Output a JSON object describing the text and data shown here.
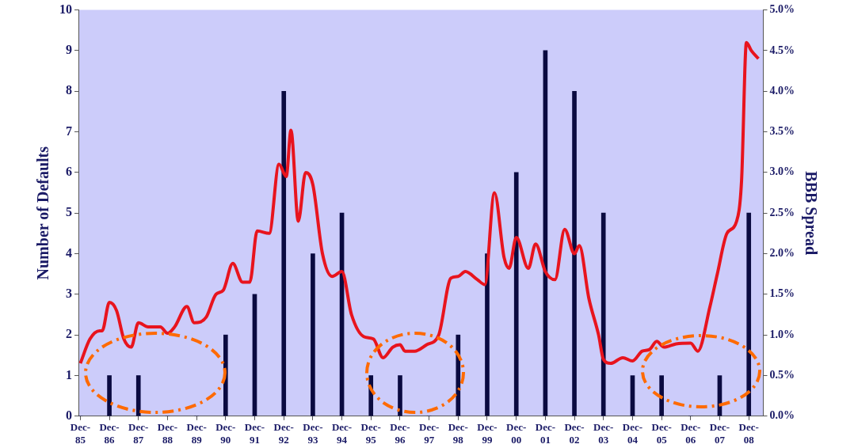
{
  "chart_data": {
    "type": "bar",
    "ylabel": "Number of Defaults",
    "y2label": "BBB Spread",
    "grid": false,
    "marker": "none",
    "xlim": [
      "1985-11-07",
      "2009-06-01"
    ],
    "xticks": [
      {
        "value": "1985-12",
        "label": "Dec-85"
      },
      {
        "value": "1986-12",
        "label": "Dec-86"
      },
      {
        "value": "1987-12",
        "label": "Dec-87"
      },
      {
        "value": "1988-12",
        "label": "Dec-88"
      },
      {
        "value": "1989-12",
        "label": "Dec-89"
      },
      {
        "value": "1990-12",
        "label": "Dec-90"
      },
      {
        "value": "1991-12",
        "label": "Dec-91"
      },
      {
        "value": "1992-12",
        "label": "Dec-92"
      },
      {
        "value": "1993-12",
        "label": "Dec-93"
      },
      {
        "value": "1994-12",
        "label": "Dec-94"
      },
      {
        "value": "1995-12",
        "label": "Dec-95"
      },
      {
        "value": "1996-12",
        "label": "Dec-96"
      },
      {
        "value": "1997-12",
        "label": "Dec-97"
      },
      {
        "value": "1998-12",
        "label": "Dec-98"
      },
      {
        "value": "1999-12",
        "label": "Dec-99"
      },
      {
        "value": "2000-12",
        "label": "Dec-00"
      },
      {
        "value": "2001-12",
        "label": "Dec-01"
      },
      {
        "value": "2002-12",
        "label": "Dec-02"
      },
      {
        "value": "2003-12",
        "label": "Dec-03"
      },
      {
        "value": "2004-12",
        "label": "Dec-04"
      },
      {
        "value": "2005-12",
        "label": "Dec-05"
      },
      {
        "value": "2006-12",
        "label": "Dec-06"
      },
      {
        "value": "2007-12",
        "label": "Dec-07"
      },
      {
        "value": "2008-12",
        "label": "Dec-08"
      }
    ],
    "ylim": [
      0,
      10
    ],
    "yticks": [
      0,
      1,
      2,
      3,
      4,
      5,
      6,
      7,
      8,
      9,
      10
    ],
    "y2lim": [
      0,
      5
    ],
    "y2ticks": [
      {
        "value": 0,
        "label": "0.0%"
      },
      {
        "value": 0.5,
        "label": "0.5%"
      },
      {
        "value": 1,
        "label": "1.0%"
      },
      {
        "value": 1.5,
        "label": "1.5%"
      },
      {
        "value": 2,
        "label": "2.0%"
      },
      {
        "value": 2.5,
        "label": "2.5%"
      },
      {
        "value": 3,
        "label": "3.0%"
      },
      {
        "value": 3.5,
        "label": "3.5%"
      },
      {
        "value": 4,
        "label": "4.0%"
      },
      {
        "value": 4.5,
        "label": "4.5%"
      },
      {
        "value": 5,
        "label": "5.0%"
      }
    ],
    "series": [
      {
        "color": "#0a0a40",
        "x": [
          "1985-12",
          "1986-12",
          "1987-12",
          "1988-12",
          "1989-12",
          "1990-12",
          "1991-12",
          "1992-12",
          "1993-12",
          "1994-12",
          "1995-12",
          "1996-12",
          "1997-12",
          "1998-12",
          "1999-12",
          "2000-12",
          "2001-12",
          "2002-12",
          "2003-12",
          "2004-12",
          "2005-12",
          "2006-12",
          "2007-12",
          "2008-12"
        ],
        "values": [
          0,
          1,
          1,
          0,
          0,
          2,
          3,
          8,
          4,
          5,
          1,
          1,
          0,
          2,
          4,
          6,
          9,
          8,
          5,
          1,
          1,
          0,
          1,
          5
        ]
      },
      {
        "type": "line",
        "axis": "y2",
        "color": "#e8141e",
        "x": [
          "1985-12",
          "1986-04",
          "1986-08",
          "1986-09",
          "1986-12",
          "1987-03",
          "1987-06",
          "1987-09",
          "1987-12",
          "1988-04",
          "1988-09",
          "1988-12",
          "1989-03",
          "1989-08",
          "1989-11",
          "1990-04",
          "1990-08",
          "1990-11",
          "1991-03",
          "1991-07",
          "1991-10",
          "1992-01",
          "1992-06",
          "1992-10",
          "1993-01",
          "1993-03",
          "1993-06",
          "1993-09",
          "1993-12",
          "1994-04",
          "1994-08",
          "1994-12",
          "1995-04",
          "1995-09",
          "1996-01",
          "1996-05",
          "1996-09",
          "1996-12",
          "1997-02",
          "1997-06",
          "1997-11",
          "1998-04",
          "1998-09",
          "1998-12",
          "1999-03",
          "1999-08",
          "1999-11",
          "2000-03",
          "2000-07",
          "2000-09",
          "2000-12",
          "2001-05",
          "2001-08",
          "2001-12",
          "2002-04",
          "2002-08",
          "2002-12",
          "2003-02",
          "2003-06",
          "2003-10",
          "2003-12",
          "2004-03",
          "2004-08",
          "2004-12",
          "2005-04",
          "2005-07",
          "2005-10",
          "2006-01",
          "2006-06",
          "2006-12",
          "2007-03",
          "2007-08",
          "2007-11",
          "2008-03",
          "2008-07",
          "2008-09",
          "2008-11",
          "2009-01",
          "2009-04"
        ],
        "values": [
          0.65,
          0.95,
          1.05,
          1.05,
          1.4,
          1.3,
          0.95,
          0.85,
          1.15,
          1.1,
          1.1,
          1.02,
          1.1,
          1.35,
          1.15,
          1.22,
          1.5,
          1.55,
          1.88,
          1.65,
          1.65,
          2.28,
          2.25,
          3.1,
          2.95,
          3.52,
          2.4,
          3.0,
          2.85,
          2.0,
          1.72,
          1.78,
          1.25,
          0.98,
          0.95,
          0.72,
          0.85,
          0.88,
          0.8,
          0.8,
          0.88,
          1.0,
          1.7,
          1.72,
          1.78,
          1.68,
          1.62,
          2.75,
          1.95,
          1.82,
          2.2,
          1.82,
          2.12,
          1.78,
          1.68,
          2.3,
          2.0,
          2.1,
          1.45,
          1.0,
          0.7,
          0.65,
          0.72,
          0.68,
          0.8,
          0.82,
          0.92,
          0.85,
          0.89,
          0.9,
          0.8,
          1.35,
          1.75,
          2.25,
          2.4,
          2.9,
          4.6,
          4.5,
          4.4
        ]
      }
    ]
  }
}
